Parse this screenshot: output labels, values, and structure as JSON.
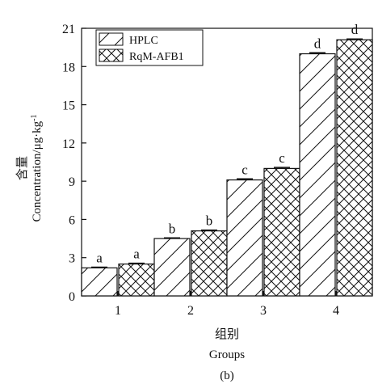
{
  "chart_data": {
    "type": "bar",
    "categories": [
      "1",
      "2",
      "3",
      "4"
    ],
    "series": [
      {
        "name": "HPLC",
        "values": [
          2.2,
          4.5,
          9.1,
          19.0
        ],
        "errors": [
          0.05,
          0.05,
          0.08,
          0.08
        ],
        "letters": [
          "a",
          "b",
          "c",
          "d"
        ],
        "pattern": "diagonal"
      },
      {
        "name": "RqM-AFB1",
        "values": [
          2.5,
          5.1,
          10.0,
          20.1
        ],
        "errors": [
          0.06,
          0.06,
          0.08,
          0.06
        ],
        "letters": [
          "a",
          "b",
          "c",
          "d"
        ],
        "pattern": "crosshatch"
      }
    ],
    "yticks": [
      0,
      3,
      6,
      9,
      12,
      15,
      18,
      21
    ],
    "ylim": [
      0,
      21
    ],
    "ylabel_cn": "含量",
    "ylabel_en": "Concentration/μg·kg",
    "ylabel_exp": "-1",
    "xlabel_cn": "组别",
    "xlabel_en": "Groups",
    "panel_label": "(b)",
    "legend_position": "top-left",
    "grid": false
  }
}
